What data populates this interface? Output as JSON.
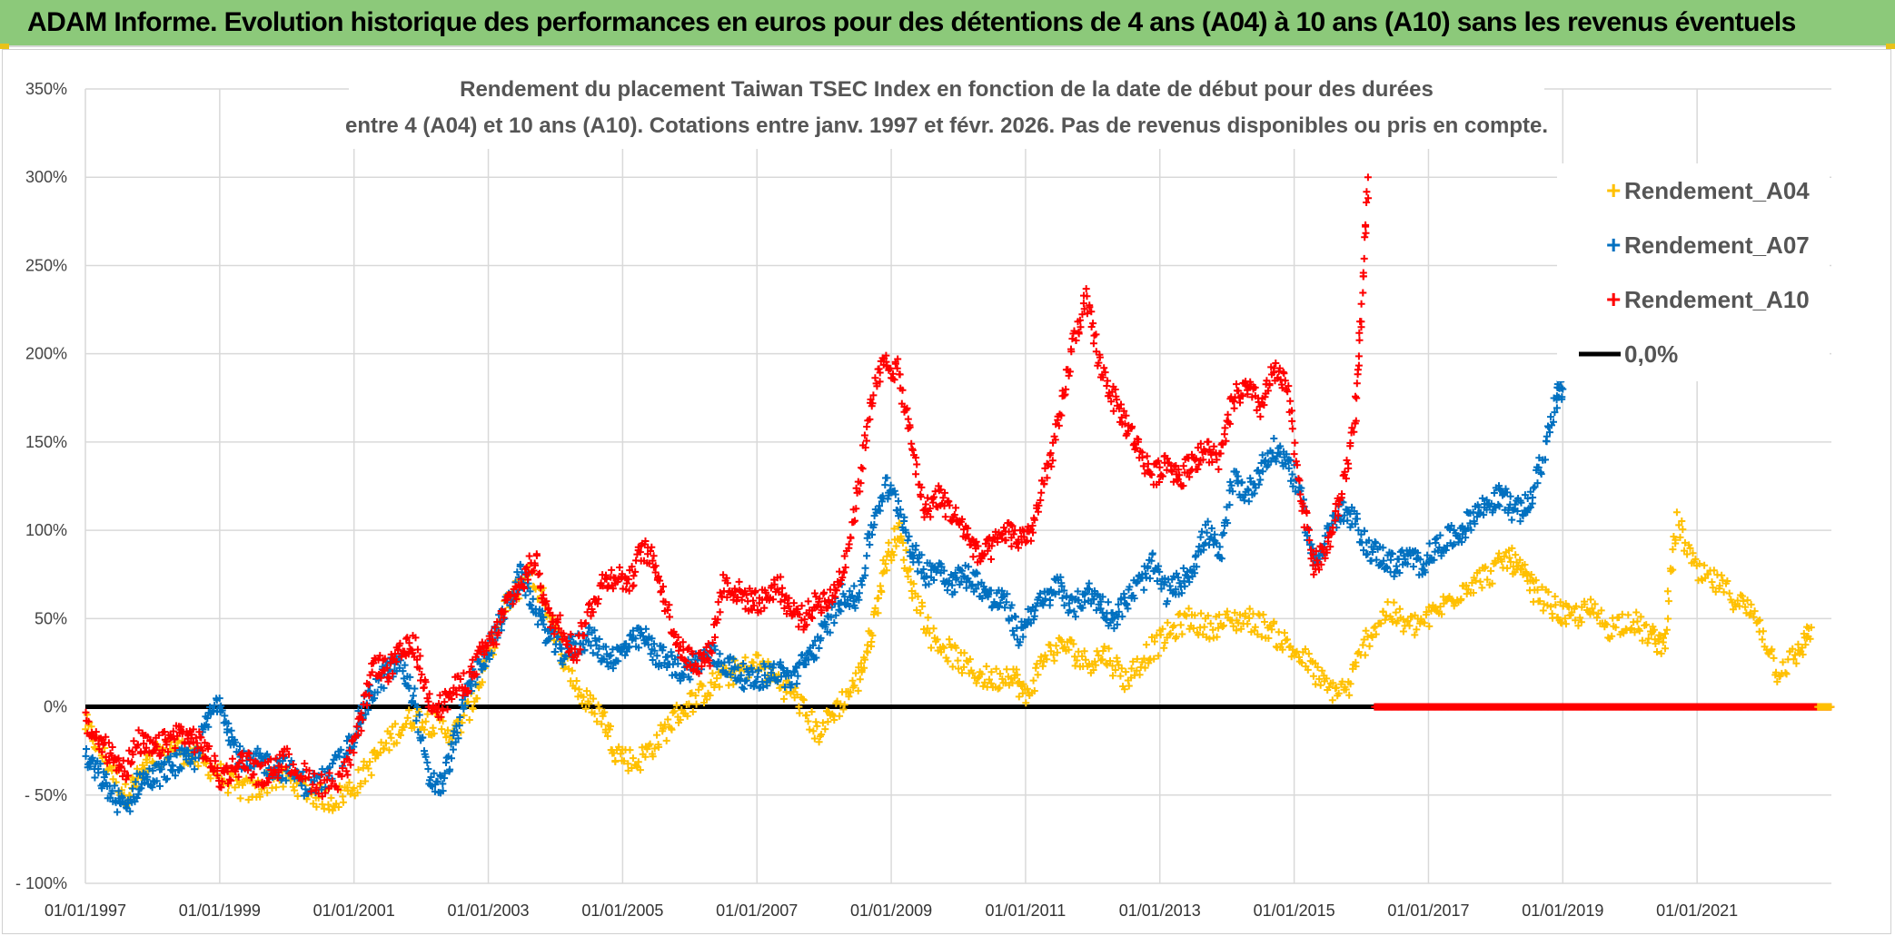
{
  "banner": {
    "title": "ADAM Informe. Evolution historique des performances en euros pour des détentions de 4 ans (A04) à 10 ans (A10) sans les revenus éventuels"
  },
  "colors": {
    "banner": "#8cc97a",
    "a04": "#ffc000",
    "a07": "#0070c0",
    "a10": "#ff0000",
    "zero": "#000000",
    "grid": "#d9d9d9"
  },
  "chart_data": {
    "type": "scatter",
    "title_lines": [
      "Rendement du placement Taiwan TSEC Index en fonction de la date de début pour des durées",
      "entre 4 (A04) et 10 ans (A10). Cotations entre janv. 1997 et févr. 2026. Pas de revenus disponibles ou pris en compte."
    ],
    "ylim": [
      -100,
      350
    ],
    "xlim": [
      1997.0,
      2023.0
    ],
    "y_ticks": [
      350,
      300,
      250,
      200,
      150,
      100,
      50,
      0,
      -50,
      -100
    ],
    "y_tick_labels": [
      "350%",
      "300%",
      "250%",
      "200%",
      "150%",
      "100%",
      "50%",
      "0%",
      "- 50%",
      "- 100%"
    ],
    "x_ticks": [
      1997,
      1999,
      2001,
      2003,
      2005,
      2007,
      2009,
      2011,
      2013,
      2015,
      2017,
      2019,
      2021
    ],
    "x_tick_labels": [
      "01/01/1997",
      "01/01/1999",
      "01/01/2001",
      "01/01/2003",
      "01/01/2005",
      "01/01/2007",
      "01/01/2009",
      "01/01/2011",
      "01/01/2013",
      "01/01/2015",
      "01/01/2017",
      "01/01/2019",
      "01/01/2021"
    ],
    "legend": [
      {
        "key": "a04",
        "label": "Rendement_A04",
        "marker": "+"
      },
      {
        "key": "a07",
        "label": "Rendement_A07",
        "marker": "+"
      },
      {
        "key": "a10",
        "label": "Rendement_A10",
        "marker": "+"
      },
      {
        "key": "zero",
        "label": "0,0%",
        "marker": "line"
      }
    ],
    "series": [
      {
        "name": "Rendement_A04",
        "key": "a04",
        "x": [
          1997.0,
          1997.3,
          1997.6,
          1997.8,
          1998.0,
          1998.3,
          1998.6,
          1998.9,
          1999.2,
          1999.5,
          1999.8,
          2000.1,
          2000.4,
          2000.7,
          2001.0,
          2001.3,
          2001.6,
          2001.9,
          2002.2,
          2002.5,
          2002.8,
          2003.0,
          2003.3,
          2003.6,
          2003.9,
          2004.1,
          2004.4,
          2004.7,
          2004.9,
          2005.2,
          2005.5,
          2005.8,
          2006.1,
          2006.4,
          2006.7,
          2007.0,
          2007.3,
          2007.6,
          2007.9,
          2008.2,
          2008.5,
          2008.7,
          2008.9,
          2009.1,
          2009.3,
          2009.6,
          2009.9,
          2010.2,
          2010.5,
          2010.8,
          2011.0,
          2011.3,
          2011.6,
          2011.9,
          2012.2,
          2012.5,
          2012.8,
          2013.1,
          2013.4,
          2013.7,
          2014.0,
          2014.3,
          2014.6,
          2014.9,
          2015.2,
          2015.5,
          2015.8,
          2016.1,
          2016.4,
          2016.7,
          2017.0,
          2017.3,
          2017.6,
          2017.9,
          2018.2,
          2018.4,
          2018.6,
          2018.9,
          2019.1,
          2019.4,
          2019.7,
          2020.0,
          2020.3,
          2020.5,
          2020.7,
          2021.0,
          2021.3,
          2021.6,
          2021.9,
          2022.2,
          2022.5,
          2022.7
        ],
        "y": [
          -10,
          -30,
          -50,
          -40,
          -30,
          -22,
          -28,
          -35,
          -45,
          -48,
          -40,
          -42,
          -50,
          -53,
          -45,
          -30,
          -15,
          -5,
          -10,
          -15,
          5,
          30,
          60,
          75,
          55,
          30,
          5,
          -5,
          -25,
          -32,
          -20,
          -5,
          5,
          15,
          20,
          25,
          15,
          5,
          -15,
          0,
          15,
          40,
          80,
          100,
          70,
          40,
          30,
          20,
          15,
          20,
          5,
          30,
          35,
          25,
          30,
          15,
          30,
          40,
          50,
          45,
          48,
          50,
          45,
          35,
          25,
          10,
          10,
          40,
          55,
          45,
          50,
          60,
          70,
          75,
          85,
          75,
          65,
          55,
          50,
          55,
          45,
          50,
          40,
          35,
          105,
          75,
          70,
          60,
          50,
          20,
          30,
          45
        ]
      },
      {
        "name": "Rendement_A07",
        "key": "a07",
        "x": [
          1997.0,
          1997.2,
          1997.4,
          1997.6,
          1997.8,
          1998.0,
          1998.2,
          1998.4,
          1998.6,
          1998.8,
          1999.0,
          1999.2,
          1999.4,
          1999.6,
          1999.8,
          2000.0,
          2000.3,
          2000.6,
          2000.9,
          2001.1,
          2001.3,
          2001.5,
          2001.7,
          2001.9,
          2002.1,
          2002.3,
          2002.5,
          2002.7,
          2002.9,
          2003.1,
          2003.3,
          2003.5,
          2003.7,
          2003.9,
          2004.1,
          2004.3,
          2004.5,
          2004.7,
          2004.9,
          2005.1,
          2005.3,
          2005.5,
          2005.7,
          2005.9,
          2006.1,
          2006.3,
          2006.5,
          2006.7,
          2006.9,
          2007.1,
          2007.3,
          2007.5,
          2007.7,
          2007.9,
          2008.1,
          2008.3,
          2008.5,
          2008.7,
          2008.9,
          2009.1,
          2009.3,
          2009.5,
          2009.7,
          2009.9,
          2010.1,
          2010.3,
          2010.5,
          2010.7,
          2010.9,
          2011.1,
          2011.3,
          2011.5,
          2011.7,
          2011.9,
          2012.1,
          2012.3,
          2012.5,
          2012.7,
          2012.9,
          2013.1,
          2013.3,
          2013.5,
          2013.7,
          2013.9,
          2014.1,
          2014.3,
          2014.5,
          2014.7,
          2014.9,
          2015.1,
          2015.3,
          2015.5,
          2015.7,
          2015.9,
          2016.1,
          2016.3,
          2016.5,
          2016.7,
          2016.9,
          2017.1,
          2017.3,
          2017.5,
          2017.7,
          2017.9,
          2018.1,
          2018.3,
          2018.5,
          2018.7,
          2018.9,
          2019.0
        ],
        "y": [
          -30,
          -38,
          -50,
          -58,
          -42,
          -40,
          -36,
          -30,
          -32,
          -10,
          5,
          -20,
          -35,
          -30,
          -34,
          -35,
          -45,
          -40,
          -25,
          -5,
          10,
          20,
          25,
          5,
          -40,
          -45,
          -20,
          10,
          25,
          40,
          60,
          75,
          55,
          40,
          30,
          35,
          40,
          30,
          28,
          35,
          40,
          30,
          25,
          20,
          25,
          30,
          25,
          20,
          15,
          18,
          20,
          15,
          25,
          35,
          50,
          65,
          60,
          100,
          125,
          115,
          90,
          75,
          80,
          70,
          75,
          70,
          60,
          60,
          40,
          55,
          60,
          70,
          55,
          65,
          60,
          50,
          60,
          70,
          80,
          65,
          70,
          80,
          100,
          85,
          130,
          120,
          135,
          145,
          140,
          120,
          80,
          100,
          110,
          105,
          90,
          85,
          80,
          85,
          80,
          90,
          95,
          100,
          110,
          115,
          120,
          110,
          115,
          140,
          175,
          180
        ]
      },
      {
        "name": "Rendement_A10",
        "key": "a10",
        "x": [
          1997.0,
          1997.2,
          1997.4,
          1997.6,
          1997.8,
          1998.0,
          1998.2,
          1998.4,
          1998.6,
          1998.8,
          1999.0,
          1999.2,
          1999.4,
          1999.6,
          1999.8,
          2000.0,
          2000.3,
          2000.6,
          2000.9,
          2001.1,
          2001.3,
          2001.5,
          2001.7,
          2001.9,
          2002.1,
          2002.3,
          2002.5,
          2002.7,
          2002.9,
          2003.1,
          2003.3,
          2003.5,
          2003.7,
          2003.9,
          2004.1,
          2004.3,
          2004.5,
          2004.7,
          2004.9,
          2005.1,
          2005.3,
          2005.5,
          2005.7,
          2005.9,
          2006.1,
          2006.3,
          2006.5,
          2006.7,
          2006.9,
          2007.1,
          2007.3,
          2007.5,
          2007.7,
          2007.9,
          2008.1,
          2008.3,
          2008.5,
          2008.7,
          2008.9,
          2009.1,
          2009.3,
          2009.5,
          2009.7,
          2009.9,
          2010.1,
          2010.3,
          2010.5,
          2010.7,
          2010.9,
          2011.1,
          2011.3,
          2011.5,
          2011.7,
          2011.9,
          2012.1,
          2012.3,
          2012.5,
          2012.7,
          2012.9,
          2013.1,
          2013.3,
          2013.5,
          2013.7,
          2013.9,
          2014.1,
          2014.3,
          2014.5,
          2014.7,
          2014.9,
          2015.1,
          2015.3,
          2015.5,
          2015.7,
          2015.9,
          2016.0,
          2016.1
        ],
        "y": [
          -10,
          -20,
          -28,
          -35,
          -20,
          -25,
          -20,
          -15,
          -18,
          -25,
          -40,
          -35,
          -30,
          -40,
          -35,
          -30,
          -40,
          -45,
          -35,
          -10,
          25,
          20,
          30,
          35,
          5,
          0,
          10,
          15,
          30,
          40,
          60,
          70,
          85,
          50,
          45,
          30,
          55,
          70,
          75,
          70,
          90,
          80,
          50,
          30,
          25,
          30,
          70,
          65,
          60,
          60,
          70,
          55,
          50,
          60,
          60,
          80,
          120,
          175,
          195,
          190,
          150,
          110,
          120,
          110,
          100,
          85,
          90,
          100,
          95,
          100,
          130,
          160,
          205,
          230,
          195,
          175,
          160,
          145,
          130,
          140,
          130,
          140,
          145,
          140,
          175,
          180,
          170,
          190,
          180,
          120,
          80,
          90,
          120,
          160,
          220,
          300
        ]
      },
      {
        "name": "Rendement_A10_zero_tail",
        "key": "a10",
        "x_range": [
          2016.2,
          2023.0
        ],
        "y_value": 0
      },
      {
        "name": "Rendement_A04_zero_tail",
        "key": "a04",
        "x_range": [
          2022.8,
          2023.0
        ],
        "y_value": 0
      }
    ]
  }
}
